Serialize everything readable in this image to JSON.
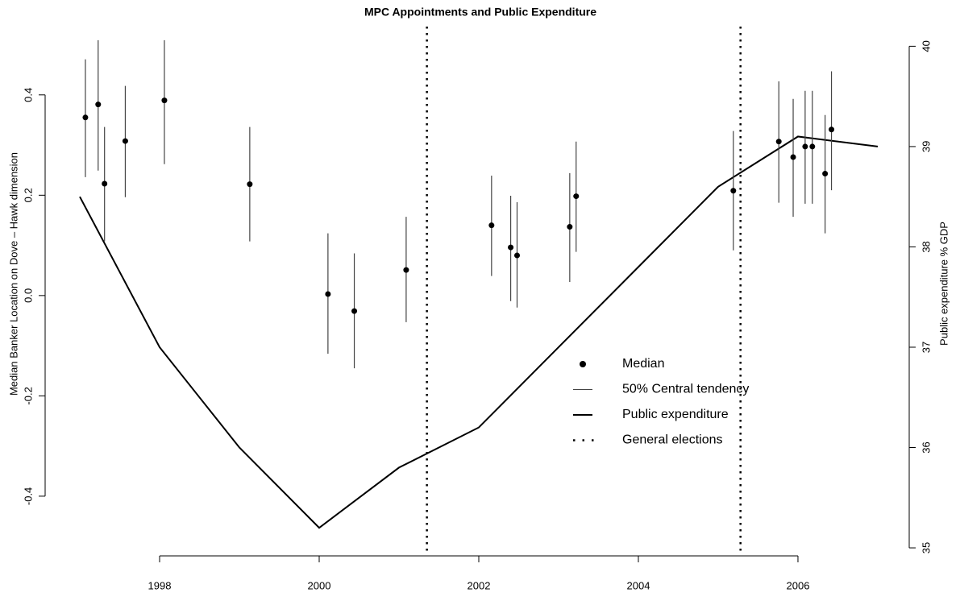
{
  "chart_data": {
    "type": "dual-axis",
    "title": "MPC Appointments and Public Expenditure",
    "ylabel": "Median Banker Location on Dove – Hawk dimension",
    "y2label": "Public expenditure % GDP",
    "xlim": [
      1996.606,
      2007.364
    ],
    "xticks": [
      1998,
      2000,
      2002,
      2004,
      2006
    ],
    "ylim": [
      -0.519,
      0.541
    ],
    "yticks": [
      -0.4,
      -0.2,
      {
        "value": 0,
        "label": "0.0"
      },
      0.2,
      0.4
    ],
    "y2lim": [
      34.92,
      40.22
    ],
    "y2ticks": [
      35,
      36,
      37,
      38,
      39,
      40
    ],
    "legend": "center-right",
    "series": [
      {
        "name": "Median",
        "type": "point",
        "color": "#000000",
        "x": [
          1997.07,
          1997.23,
          1997.31,
          1997.57,
          1998.06,
          1999.13,
          2000.11,
          2000.44,
          2001.09,
          2002.16,
          2002.4,
          2002.48,
          2003.14,
          2003.22,
          2005.19,
          2005.76,
          2005.94,
          2006.09,
          2006.18,
          2006.34,
          2006.42
        ],
        "values": [
          0.355,
          0.381,
          0.223,
          0.308,
          0.389,
          0.222,
          0.003,
          -0.031,
          0.051,
          0.14,
          0.096,
          0.08,
          0.137,
          0.198,
          0.209,
          0.307,
          0.276,
          0.297,
          0.297,
          0.243,
          0.331
        ]
      },
      {
        "name": "50% Central tendency",
        "type": "errorbar",
        "color": "#444444",
        "lower": [
          0.236,
          0.249,
          0.108,
          0.196,
          0.262,
          0.108,
          -0.116,
          -0.145,
          -0.053,
          0.039,
          -0.011,
          -0.024,
          0.027,
          0.087,
          0.09,
          0.185,
          0.157,
          0.183,
          0.183,
          0.124,
          0.21
        ],
        "upper": [
          0.471,
          0.509,
          0.336,
          0.418,
          0.509,
          0.336,
          0.124,
          0.084,
          0.157,
          0.239,
          0.199,
          0.186,
          0.244,
          0.307,
          0.328,
          0.427,
          0.392,
          0.408,
          0.408,
          0.36,
          0.447
        ]
      },
      {
        "name": "Public expenditure",
        "type": "line",
        "axis": "y2",
        "color": "#000000",
        "x": [
          1997,
          1998,
          1999,
          2000,
          2001,
          2002,
          2003,
          2004,
          2005,
          2006,
          2007
        ],
        "values": [
          38.5,
          37.0,
          36.0,
          35.2,
          35.8,
          36.2,
          37.0,
          37.8,
          38.6,
          39.1,
          39.0
        ]
      },
      {
        "name": "General elections",
        "type": "vline",
        "color": "#000000",
        "x": [
          2001.35,
          2005.28
        ]
      }
    ]
  }
}
